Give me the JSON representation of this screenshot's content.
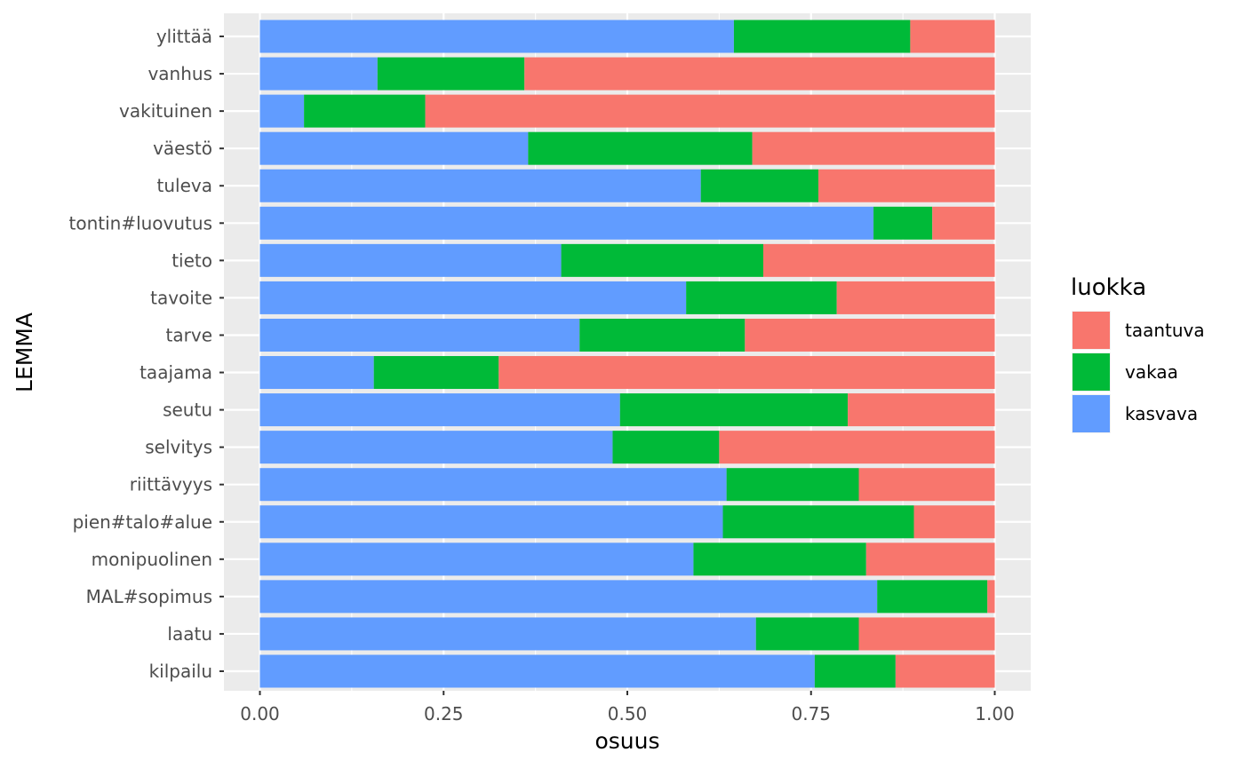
{
  "chart_data": {
    "type": "bar",
    "orientation": "horizontal",
    "stacked": true,
    "xlabel": "osuus",
    "ylabel": "LEMMA",
    "xlim": [
      0,
      1
    ],
    "xticks": [
      "0.00",
      "0.25",
      "0.50",
      "0.75",
      "1.00"
    ],
    "grid": true,
    "legend": {
      "title": "luokka",
      "placement": "right"
    },
    "categories": [
      "ylittää",
      "vanhus",
      "vakituinen",
      "väestö",
      "tuleva",
      "tontin#luovutus",
      "tieto",
      "tavoite",
      "tarve",
      "taajama",
      "seutu",
      "selvitys",
      "riittävyys",
      "pien#talo#alue",
      "monipuolinen",
      "MAL#sopimus",
      "laatu",
      "kilpailu"
    ],
    "series": [
      {
        "name": "kasvava",
        "color": "#619CFF",
        "values": [
          0.645,
          0.16,
          0.06,
          0.365,
          0.6,
          0.835,
          0.41,
          0.58,
          0.435,
          0.155,
          0.49,
          0.48,
          0.635,
          0.63,
          0.59,
          0.84,
          0.675,
          0.755
        ]
      },
      {
        "name": "vakaa",
        "color": "#00BA38",
        "values": [
          0.24,
          0.2,
          0.165,
          0.305,
          0.16,
          0.08,
          0.275,
          0.205,
          0.225,
          0.17,
          0.31,
          0.145,
          0.18,
          0.26,
          0.235,
          0.15,
          0.14,
          0.11
        ]
      },
      {
        "name": "taantuva",
        "color": "#F8766D",
        "values": [
          0.115,
          0.64,
          0.775,
          0.33,
          0.24,
          0.085,
          0.315,
          0.215,
          0.34,
          0.675,
          0.2,
          0.375,
          0.185,
          0.11,
          0.175,
          0.01,
          0.185,
          0.135
        ]
      }
    ],
    "legend_order": [
      "taantuva",
      "vakaa",
      "kasvava"
    ]
  }
}
